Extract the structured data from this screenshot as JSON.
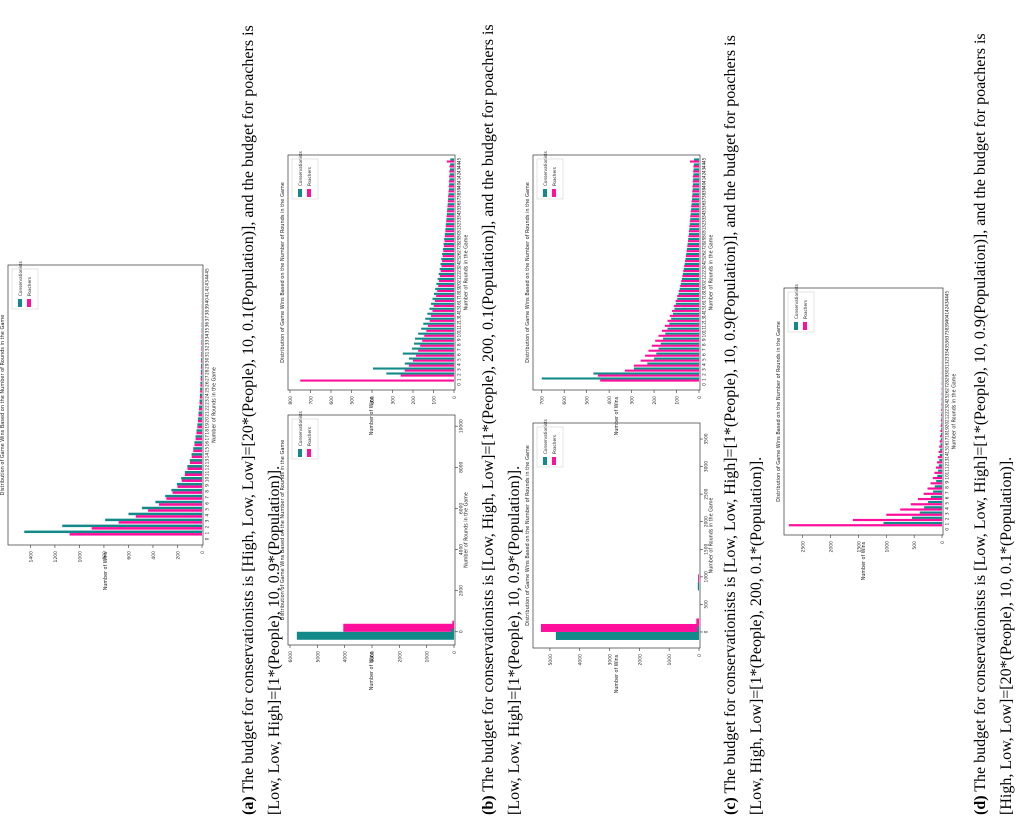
{
  "colors": {
    "conservationists": "#138a8a",
    "poachers": "#ff0f9c"
  },
  "chart_data": [
    {
      "id": "a-top",
      "type": "bar",
      "orientation": "vertical",
      "title": "Distribution of Game Wins Based on the Number of Rounds in the Game",
      "xlabel": "Number of Rounds in the Game",
      "ylabel": "Number of Wins",
      "legend": [
        "Conservationists",
        "Poachers"
      ],
      "ylim": [
        0,
        1550
      ],
      "yticks": [
        0,
        200,
        400,
        600,
        800,
        1000,
        1200,
        1400
      ],
      "categories": [
        0,
        1,
        2,
        3,
        4,
        5,
        6,
        7,
        8,
        9,
        10,
        11,
        12,
        13,
        14,
        15,
        16,
        17,
        18,
        19,
        20,
        21,
        22,
        23,
        24,
        25,
        26,
        27,
        28,
        29,
        30,
        31,
        32,
        33,
        34,
        35,
        36,
        37,
        38,
        39,
        40,
        41,
        42,
        43,
        44,
        45
      ],
      "series": [
        {
          "name": "Conservationists",
          "values": [
            0,
            1450,
            1140,
            790,
            600,
            490,
            380,
            300,
            250,
            205,
            170,
            140,
            120,
            100,
            85,
            72,
            62,
            53,
            45,
            38,
            33,
            28,
            24,
            20,
            17,
            15,
            13,
            11,
            9,
            8,
            7,
            6,
            5,
            5,
            4,
            3,
            3,
            2,
            2,
            2,
            1,
            1,
            1,
            1,
            1,
            1
          ]
        },
        {
          "name": "Poachers",
          "values": [
            0,
            1080,
            900,
            680,
            540,
            440,
            350,
            290,
            240,
            200,
            165,
            140,
            118,
            98,
            84,
            71,
            61,
            52,
            45,
            38,
            33,
            28,
            24,
            20,
            17,
            15,
            13,
            11,
            9,
            8,
            7,
            6,
            5,
            5,
            4,
            3,
            3,
            2,
            2,
            2,
            1,
            1,
            1,
            1,
            1,
            1
          ]
        }
      ]
    },
    {
      "id": "a-left",
      "type": "bar",
      "orientation": "vertical",
      "title": "Distribution of Game Wins Based on the Number of Rounds in the Game",
      "xlabel": "Number of Rounds in the Game",
      "ylabel": "Number of Wins",
      "legend": [
        "Conservationists",
        "Poachers"
      ],
      "xlim": [
        -400,
        10300
      ],
      "xticks": [
        0,
        2000,
        4000,
        6000,
        8000,
        10000
      ],
      "ylim": [
        0,
        6000
      ],
      "yticks": [
        0,
        1000,
        2000,
        3000,
        4000,
        5000,
        6000
      ],
      "x": [
        0,
        150
      ],
      "series": [
        {
          "name": "Conservationists",
          "values": [
            5750,
            100
          ]
        },
        {
          "name": "Poachers",
          "values": [
            4050,
            60
          ]
        }
      ]
    },
    {
      "id": "a-right",
      "type": "bar",
      "orientation": "vertical",
      "title": "Distribution of Game Wins Based on the Number of Rounds in the Game",
      "xlabel": "Number of Rounds in the Game",
      "ylabel": "Number of Wins",
      "legend": [
        "Conservationists",
        "Poachers"
      ],
      "ylim": [
        0,
        800
      ],
      "yticks": [
        0,
        100,
        200,
        300,
        400,
        500,
        600,
        700,
        800
      ],
      "categories": [
        0,
        1,
        2,
        3,
        4,
        5,
        6,
        7,
        8,
        9,
        10,
        11,
        12,
        13,
        14,
        15,
        16,
        17,
        18,
        19,
        20,
        21,
        22,
        23,
        24,
        25,
        26,
        27,
        28,
        29,
        30,
        31,
        32,
        33,
        34,
        35,
        36,
        37,
        38,
        39,
        40,
        41,
        42,
        43,
        44,
        45
      ],
      "series": [
        {
          "name": "Conservationists",
          "values": [
            0,
            0,
            330,
            395,
            240,
            220,
            250,
            205,
            195,
            190,
            175,
            160,
            150,
            140,
            130,
            120,
            112,
            105,
            98,
            92,
            86,
            80,
            75,
            70,
            66,
            62,
            58,
            54,
            51,
            48,
            45,
            42,
            40,
            37,
            35,
            33,
            31,
            29,
            27,
            25,
            24,
            22,
            21,
            20,
            19,
            18
          ]
        },
        {
          "name": "Poachers",
          "values": [
            0,
            750,
            260,
            240,
            220,
            200,
            185,
            175,
            165,
            155,
            145,
            135,
            127,
            119,
            112,
            105,
            99,
            93,
            87,
            82,
            77,
            73,
            69,
            65,
            61,
            58,
            55,
            52,
            49,
            46,
            44,
            42,
            40,
            38,
            36,
            34,
            32,
            30,
            29,
            27,
            26,
            25,
            24,
            23,
            22,
            35
          ]
        }
      ]
    },
    {
      "id": "b-left",
      "type": "bar",
      "orientation": "vertical",
      "title": "Distribution of Game Wins Based on the Number of Rounds in the Game",
      "xlabel": "Number of Rounds in the Game",
      "ylabel": "Number of Wins",
      "legend": [
        "Conservationists",
        "Poachers"
      ],
      "xlim": [
        -200,
        3700
      ],
      "xticks": [
        0,
        500,
        1000,
        1500,
        2000,
        2500,
        3000,
        3500
      ],
      "ylim": [
        0,
        5500
      ],
      "yticks": [
        0,
        1000,
        2000,
        3000,
        4000,
        5000
      ],
      "x": [
        0,
        100,
        900
      ],
      "series": [
        {
          "name": "Conservationists",
          "values": [
            4800,
            60,
            40
          ]
        },
        {
          "name": "Poachers",
          "values": [
            5300,
            90,
            30
          ]
        }
      ]
    },
    {
      "id": "b-right",
      "type": "bar",
      "orientation": "vertical",
      "title": "Distribution of Game Wins Based on the Number of Rounds in the Game",
      "xlabel": "Number of Rounds in the Game",
      "ylabel": "Number of Wins",
      "legend": [
        "Conservationists",
        "Poachers"
      ],
      "ylim": [
        0,
        730
      ],
      "yticks": [
        0,
        100,
        200,
        300,
        400,
        500,
        600,
        700
      ],
      "categories": [
        0,
        1,
        2,
        3,
        4,
        5,
        6,
        7,
        8,
        9,
        10,
        11,
        12,
        13,
        14,
        15,
        16,
        17,
        18,
        19,
        20,
        21,
        22,
        23,
        24,
        25,
        26,
        27,
        28,
        29,
        30,
        31,
        32,
        33,
        34,
        35,
        36,
        37,
        38,
        39,
        40,
        41,
        42,
        43,
        44,
        45
      ],
      "series": [
        {
          "name": "Conservationists",
          "values": [
            0,
            700,
            470,
            290,
            230,
            200,
            190,
            180,
            170,
            160,
            150,
            140,
            132,
            124,
            116,
            109,
            103,
            97,
            91,
            86,
            81,
            76,
            72,
            68,
            64,
            60,
            57,
            54,
            51,
            48,
            45,
            43,
            41,
            39,
            37,
            35,
            33,
            31,
            29,
            28,
            27,
            26,
            25,
            24,
            23,
            22
          ]
        },
        {
          "name": "Poachers",
          "values": [
            0,
            440,
            450,
            330,
            290,
            260,
            240,
            225,
            210,
            195,
            180,
            165,
            152,
            140,
            130,
            120,
            112,
            104,
            97,
            90,
            84,
            79,
            74,
            70,
            66,
            62,
            58,
            55,
            52,
            49,
            47,
            45,
            43,
            41,
            39,
            37,
            35,
            33,
            31,
            30,
            29,
            28,
            27,
            26,
            25,
            40
          ]
        }
      ]
    },
    {
      "id": "c",
      "type": "bar",
      "orientation": "vertical",
      "title": "Distribution of Game Wins Based on the Number of Rounds in the Game",
      "xlabel": "Number of Rounds in the Game",
      "ylabel": "Number of Wins",
      "legend": [
        "Conservationists",
        "Poachers"
      ],
      "ylim": [
        0,
        2800
      ],
      "yticks": [
        0,
        500,
        1000,
        1500,
        2000,
        2500
      ],
      "categories": [
        0,
        1,
        2,
        3,
        4,
        5,
        6,
        7,
        8,
        9,
        10,
        11,
        12,
        13,
        14,
        15,
        16,
        17,
        18,
        19,
        20,
        21,
        22,
        23,
        24,
        25,
        26,
        27,
        28,
        29,
        30,
        31,
        32,
        33,
        34,
        35,
        36,
        37,
        38,
        39,
        40,
        41,
        42,
        43,
        44,
        45
      ],
      "series": [
        {
          "name": "Conservationists",
          "values": [
            0,
            1050,
            540,
            400,
            320,
            250,
            200,
            160,
            130,
            105,
            85,
            70,
            58,
            48,
            40,
            33,
            27,
            22,
            18,
            15,
            12,
            10,
            8,
            7,
            6,
            5,
            4,
            3,
            3,
            2,
            2,
            2,
            1,
            1,
            1,
            1,
            1,
            1,
            1,
            1,
            0,
            0,
            0,
            0,
            0,
            0
          ]
        },
        {
          "name": "Poachers",
          "values": [
            0,
            2750,
            1600,
            1000,
            750,
            560,
            430,
            330,
            260,
            205,
            165,
            135,
            110,
            90,
            74,
            61,
            50,
            41,
            34,
            28,
            23,
            19,
            16,
            13,
            11,
            9,
            8,
            7,
            6,
            5,
            4,
            3,
            3,
            2,
            2,
            2,
            1,
            1,
            1,
            1,
            1,
            0,
            0,
            0,
            0,
            0
          ]
        }
      ]
    }
  ],
  "captions": [
    {
      "label": "(a)",
      "text": "The budget for conservationists is [High, Low, Low]=[20*(People), 10, 0.1(Population)], and the budget for poachers is [Low, Low, High]=[1*(People), 10, 0.9*(Population)]."
    },
    {
      "label": "(b)",
      "text": "The budget for conservationists is [Low, High, Low]=[1*(People), 200, 0.1(Population)], and the budget for poachers is [Low, Low, High]=[1*(People), 10, 0.9*(Population)]."
    },
    {
      "label": "(c)",
      "text": "The budget for conservationists is [Low, Low, High]=[1*(People), 10, 0.9(Population)], and the budget for poachers is [Low, High, Low]=[1*(People), 200, 0.1*(Population)]."
    },
    {
      "label": "(d)",
      "text": "The budget for conservationists is [Low, Low, High]=[1*(People), 10, 0.9(Population)], and the budget for poachers is [High, Low, Low]=[20*(People), 10, 0.1*(Population)]."
    }
  ]
}
